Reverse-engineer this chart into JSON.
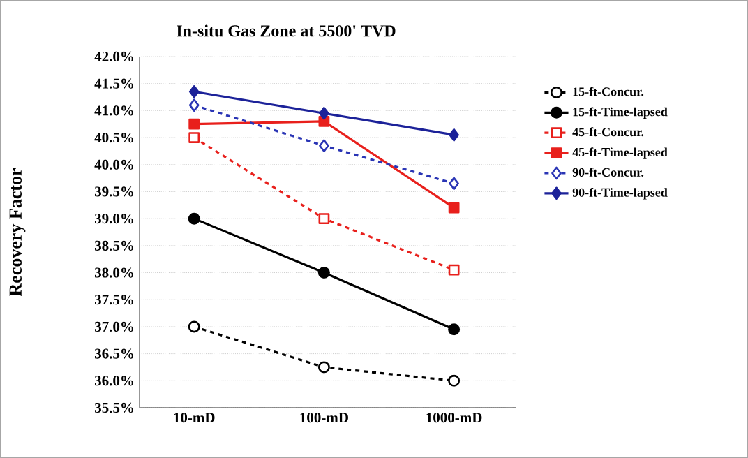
{
  "chart_data": {
    "type": "line",
    "title": "In-situ Gas Zone at 5500' TVD",
    "ylabel": "Recovery Factor",
    "categories": [
      "10-mD",
      "100-mD",
      "1000-mD"
    ],
    "series": [
      {
        "name": "15-ft-Concur.",
        "color": "#000000",
        "marker": "circle",
        "line_style": "dashed",
        "values": [
          37.0,
          36.25,
          36.0
        ]
      },
      {
        "name": "15-ft-Time-lapsed",
        "color": "#000000",
        "marker": "circle",
        "line_style": "solid",
        "values": [
          39.0,
          38.0,
          36.95
        ]
      },
      {
        "name": "45-ft-Concur.",
        "color": "#e8201c",
        "marker": "square",
        "line_style": "dashed",
        "values": [
          40.5,
          39.0,
          38.05
        ]
      },
      {
        "name": "45-ft-Time-lapsed",
        "color": "#e8201c",
        "marker": "square",
        "line_style": "solid",
        "values": [
          40.75,
          40.8,
          39.2
        ]
      },
      {
        "name": "90-ft-Concur.",
        "color": "#2a35b5",
        "marker": "diamond",
        "line_style": "dashed",
        "values": [
          41.1,
          40.35,
          39.65
        ]
      },
      {
        "name": "90-ft-Time-lapsed",
        "color": "#1c2299",
        "marker": "diamond",
        "line_style": "solid",
        "values": [
          41.35,
          40.95,
          40.55
        ]
      }
    ],
    "ylim": [
      35.5,
      42.0
    ],
    "yticks": [
      {
        "value": 35.5,
        "label": "35.5%"
      },
      {
        "value": 36.0,
        "label": "36.0%"
      },
      {
        "value": 36.5,
        "label": "36.5%"
      },
      {
        "value": 37.0,
        "label": "37.0%"
      },
      {
        "value": 37.5,
        "label": "37.5%"
      },
      {
        "value": 38.0,
        "label": "38.0%"
      },
      {
        "value": 38.5,
        "label": "38.5%"
      },
      {
        "value": 39.0,
        "label": "39.0%"
      },
      {
        "value": 39.5,
        "label": "39.5%"
      },
      {
        "value": 40.0,
        "label": "40.0%"
      },
      {
        "value": 40.5,
        "label": "40.5%"
      },
      {
        "value": 41.0,
        "label": "41.0%"
      },
      {
        "value": 41.5,
        "label": "41.5%"
      },
      {
        "value": 42.0,
        "label": "42.0%"
      }
    ],
    "grid": "y",
    "legend": "right"
  }
}
